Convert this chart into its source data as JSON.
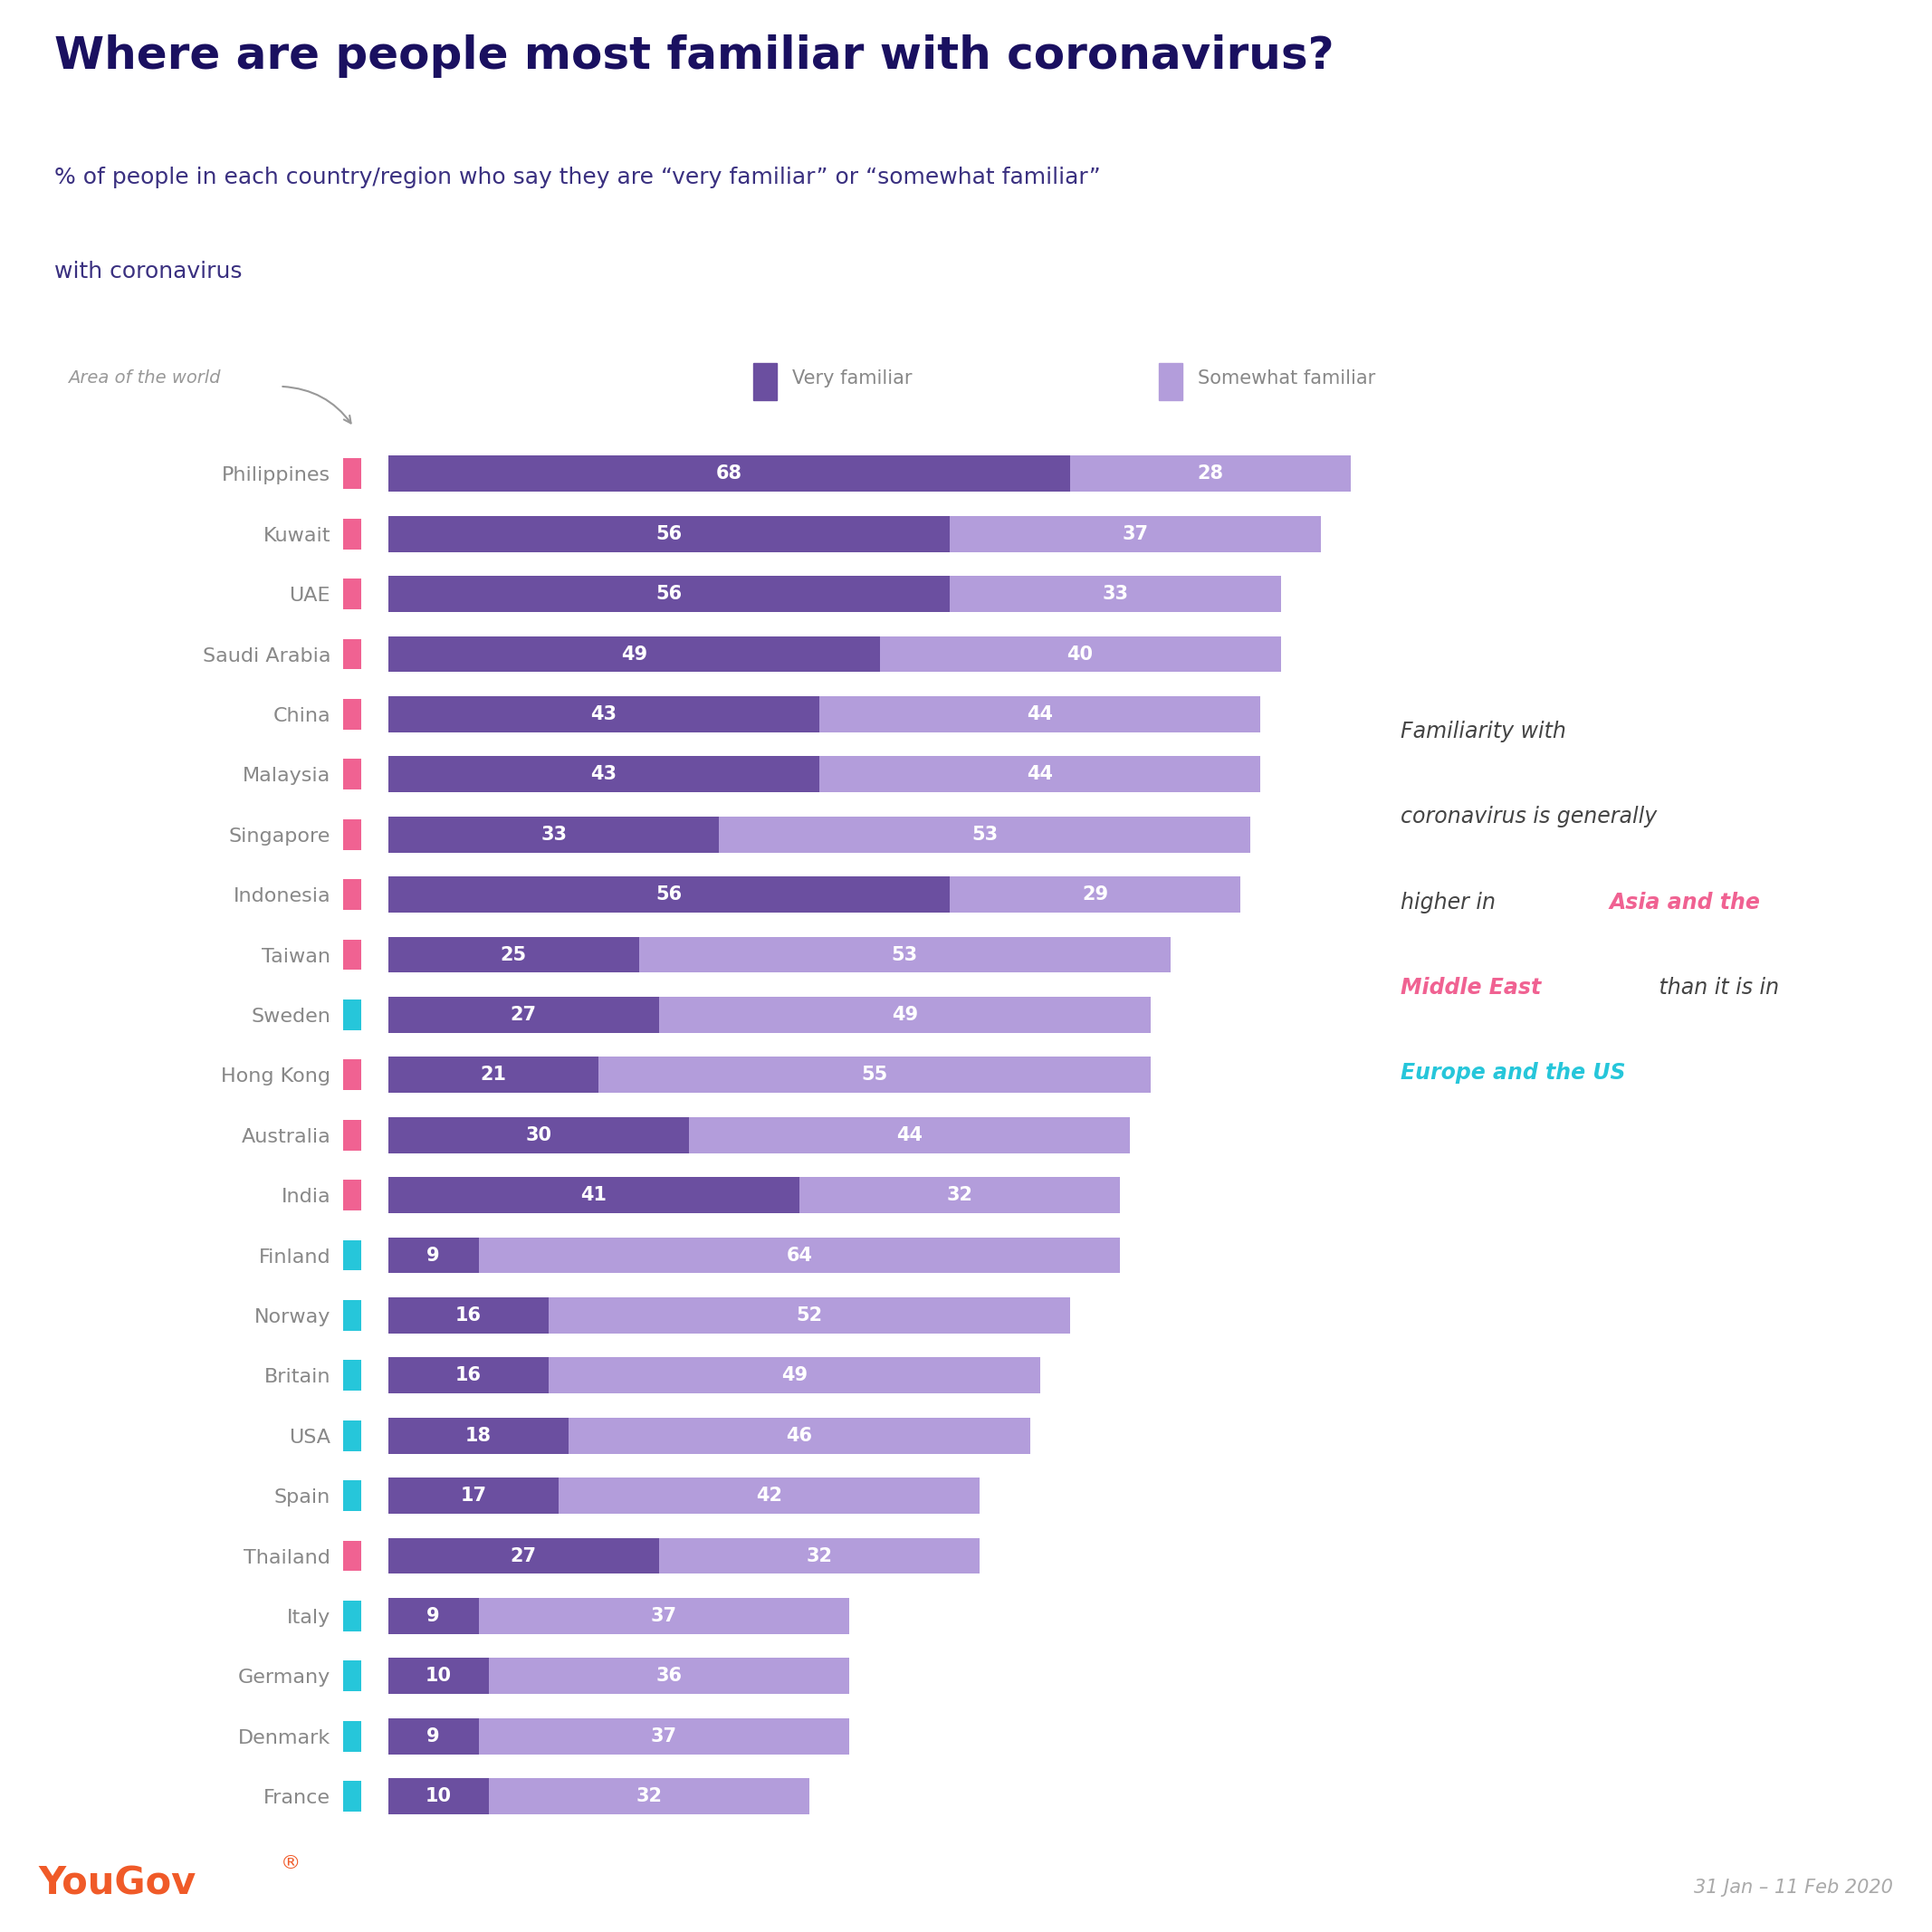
{
  "title": "Where are people most familiar with coronavirus?",
  "subtitle_line1": "% of people in each country/region who say they are “very familiar” or “somewhat familiar”",
  "subtitle_line2": "with coronavirus",
  "countries": [
    "Philippines",
    "Kuwait",
    "UAE",
    "Saudi Arabia",
    "China",
    "Malaysia",
    "Singapore",
    "Indonesia",
    "Taiwan",
    "Sweden",
    "Hong Kong",
    "Australia",
    "India",
    "Finland",
    "Norway",
    "Britain",
    "USA",
    "Spain",
    "Thailand",
    "Italy",
    "Germany",
    "Denmark",
    "France"
  ],
  "region_colors": [
    "#F06292",
    "#F06292",
    "#F06292",
    "#F06292",
    "#F06292",
    "#F06292",
    "#F06292",
    "#F06292",
    "#F06292",
    "#26C6DA",
    "#F06292",
    "#F06292",
    "#F06292",
    "#26C6DA",
    "#26C6DA",
    "#26C6DA",
    "#26C6DA",
    "#26C6DA",
    "#F06292",
    "#26C6DA",
    "#26C6DA",
    "#26C6DA",
    "#26C6DA"
  ],
  "very_familiar": [
    68,
    56,
    56,
    49,
    43,
    43,
    33,
    56,
    25,
    27,
    21,
    30,
    41,
    9,
    16,
    16,
    18,
    17,
    27,
    9,
    10,
    9,
    10
  ],
  "somewhat_familiar": [
    28,
    37,
    33,
    40,
    44,
    44,
    53,
    29,
    53,
    49,
    55,
    44,
    32,
    64,
    52,
    49,
    46,
    42,
    32,
    37,
    36,
    37,
    32
  ],
  "color_very": "#6B4FA0",
  "color_somewhat": "#B39DDB",
  "bg_header": "#E8E6F0",
  "bg_chart": "#FFFFFF",
  "annotation_asia_color": "#F06292",
  "annotation_europe_color": "#26C6DA",
  "annotation_text_color": "#444444",
  "yougov_color": "#F05A28",
  "date_text": "31 Jan – 11 Feb 2020",
  "legend_very": "Very familiar",
  "legend_somewhat": "Somewhat familiar",
  "area_label": "Area of the world",
  "title_color": "#1a1060",
  "subtitle_color": "#3a3080",
  "country_label_color": "#888888",
  "bar_label_color": "#FFFFFF",
  "legend_color": "#888888",
  "area_label_color": "#999999"
}
